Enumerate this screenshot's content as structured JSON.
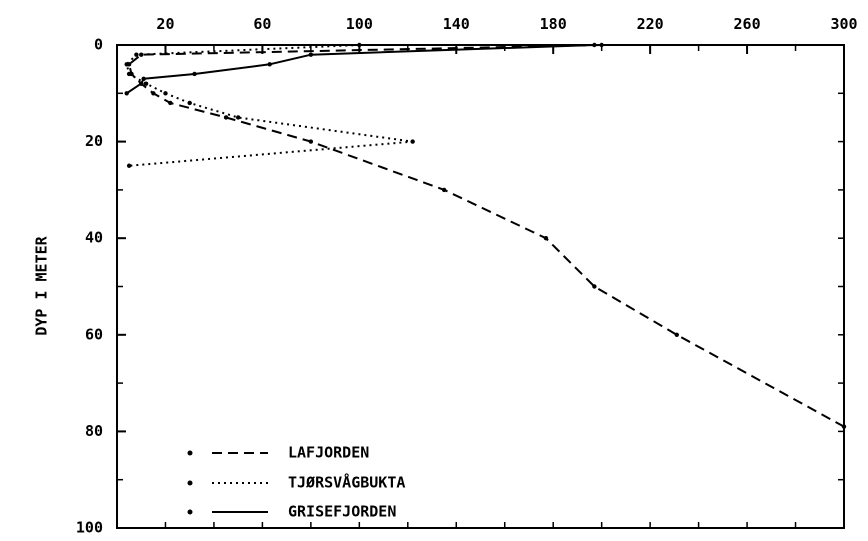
{
  "chart_data": {
    "type": "line",
    "ylabel": "DYP I METER",
    "xlim": [
      0,
      300
    ],
    "ylim": [
      0,
      100
    ],
    "y_inverted": true,
    "x_axis_position": "top",
    "x_ticks": [
      20,
      60,
      100,
      140,
      180,
      220,
      260,
      300
    ],
    "y_ticks": [
      0,
      20,
      40,
      60,
      80,
      100
    ],
    "grid": false,
    "legend_placement": "bottom-left",
    "series": [
      {
        "name": "LAFJORDEN",
        "style": "dashed",
        "x": [
          200,
          10,
          5,
          6,
          10,
          15,
          22,
          45,
          80,
          135,
          177,
          197,
          231,
          300
        ],
        "y": [
          0,
          2,
          4,
          6,
          8,
          10,
          12,
          15,
          20,
          30,
          40,
          50,
          60,
          79
        ]
      },
      {
        "name": "TJØRSVÅGBUKTA",
        "style": "dotted",
        "x": [
          100,
          8,
          4,
          5,
          12,
          20,
          30,
          50,
          122,
          5
        ],
        "y": [
          0,
          2,
          4,
          6,
          8,
          10,
          12,
          15,
          20,
          25
        ]
      },
      {
        "name": "GRISEFJORDEN",
        "style": "solid",
        "x": [
          197,
          80,
          63,
          32,
          11,
          10,
          4
        ],
        "y": [
          0,
          2,
          4,
          6,
          7,
          8,
          10
        ]
      }
    ]
  }
}
